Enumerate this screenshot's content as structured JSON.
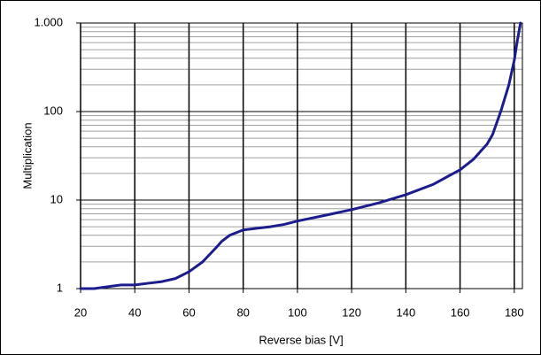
{
  "chart_data": {
    "type": "line",
    "x_label": "Reverse bias [V]",
    "y_label": "Multiplication",
    "x": [
      20,
      25,
      30,
      35,
      40,
      45,
      50,
      55,
      60,
      65,
      70,
      72,
      75,
      80,
      85,
      90,
      95,
      100,
      110,
      120,
      130,
      140,
      150,
      160,
      165,
      170,
      172,
      175,
      178,
      180,
      181,
      182.3
    ],
    "series": [
      {
        "color": "#1c1c8e",
        "values": [
          1.0,
          1.0,
          1.05,
          1.1,
          1.1,
          1.15,
          1.2,
          1.3,
          1.55,
          2.0,
          2.9,
          3.4,
          4.0,
          4.6,
          4.8,
          5.0,
          5.3,
          5.8,
          6.7,
          7.8,
          9.3,
          11.5,
          15,
          22,
          29,
          43,
          55,
          100,
          200,
          380,
          600,
          1000
        ]
      }
    ],
    "xlim": [
      20,
      183
    ],
    "xticks": [
      20,
      40,
      60,
      80,
      100,
      120,
      140,
      160,
      180
    ],
    "ylim": [
      1,
      1000
    ],
    "yticks": [
      1,
      10,
      100,
      {
        "value": 1000,
        "label": "1.000"
      }
    ],
    "y_minor_ticks": [
      2,
      3,
      4,
      5,
      6,
      7,
      8,
      9,
      20,
      30,
      40,
      50,
      60,
      70,
      80,
      90,
      200,
      300,
      400,
      500,
      600,
      700,
      800,
      900
    ],
    "y_log": true,
    "grid": true
  }
}
